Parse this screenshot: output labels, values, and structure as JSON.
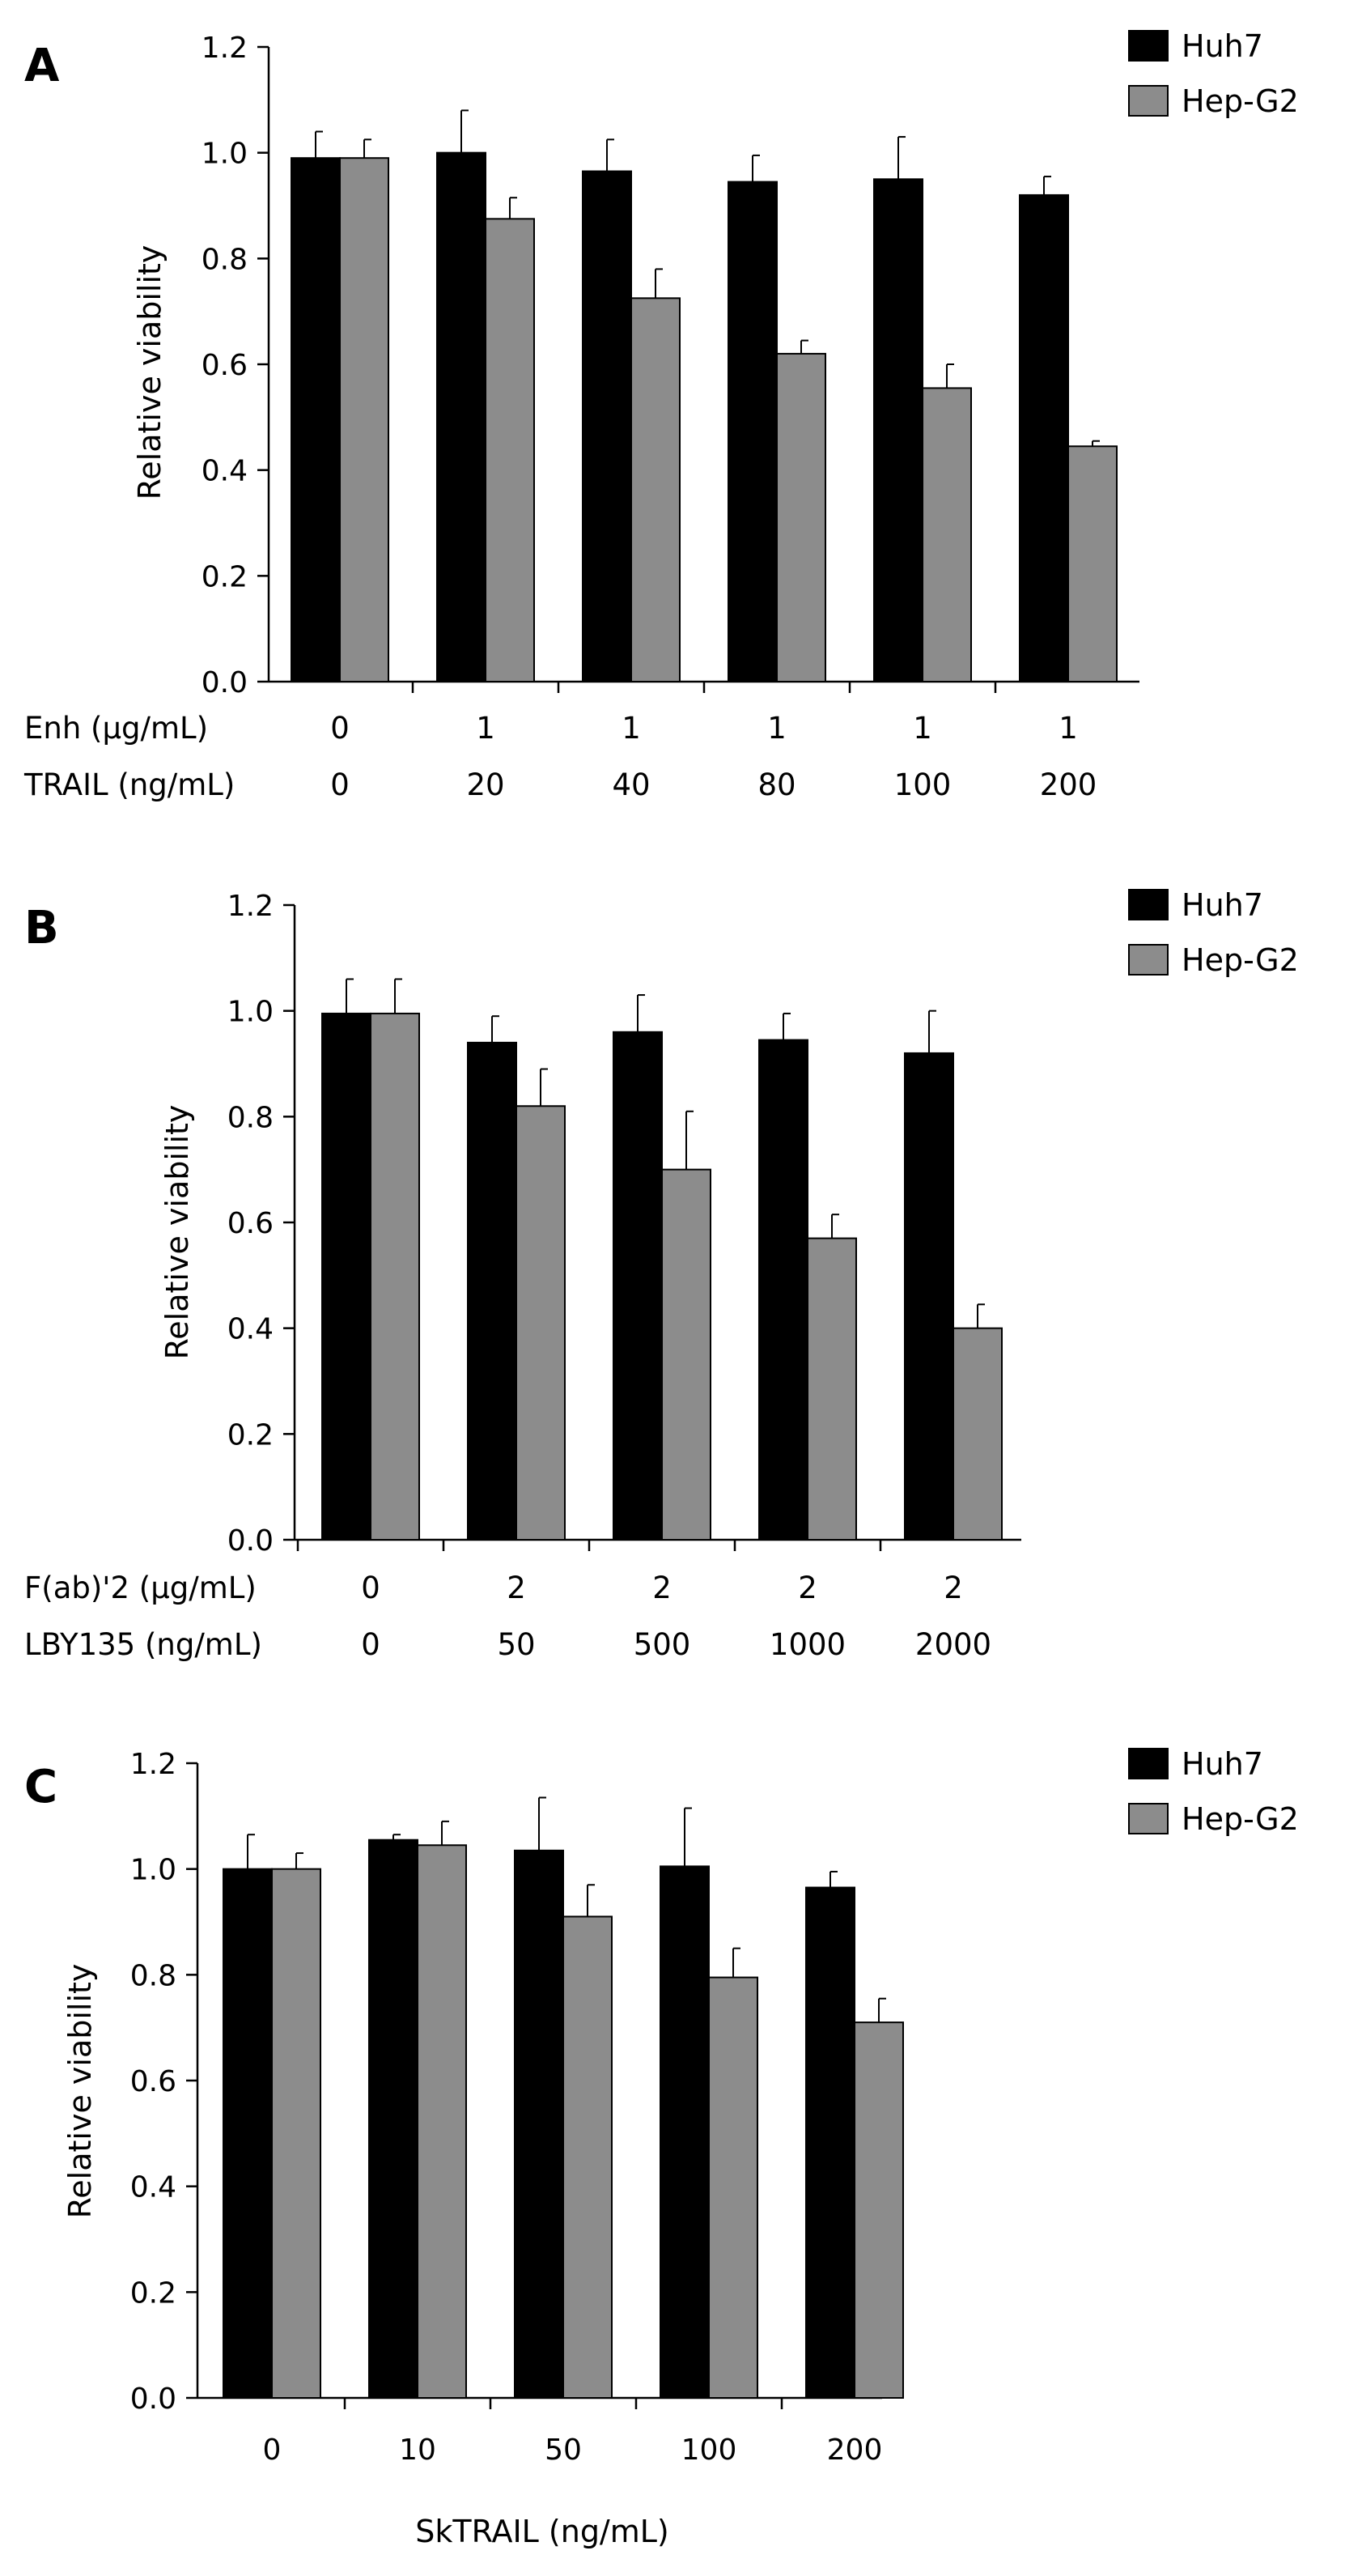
{
  "colors": {
    "huh7": "#000000",
    "hepg2": "#8c8c8c"
  },
  "chart_data": [
    {
      "panel_label": "A",
      "type": "bar",
      "ylabel": "Relative viability",
      "ylim": [
        0,
        1.2
      ],
      "yticks": [
        "0.0",
        "0.2",
        "0.4",
        "0.6",
        "0.8",
        "1.0",
        "1.2"
      ],
      "legend": {
        "placement": "top-right",
        "entries": [
          "Huh7",
          "Hep-G2"
        ]
      },
      "condition_rows": [
        {
          "label": "Enh (μg/mL)",
          "values": [
            "0",
            "1",
            "1",
            "1",
            "1",
            "1"
          ]
        },
        {
          "label": "TRAIL (ng/mL)",
          "values": [
            "0",
            "20",
            "40",
            "80",
            "100",
            "200"
          ]
        }
      ],
      "series": [
        {
          "name": "Huh7",
          "values": [
            0.99,
            1.0,
            0.965,
            0.945,
            0.95,
            0.92
          ],
          "errors": [
            0.05,
            0.08,
            0.06,
            0.05,
            0.08,
            0.035
          ]
        },
        {
          "name": "Hep-G2",
          "values": [
            0.99,
            0.875,
            0.725,
            0.62,
            0.555,
            0.445
          ],
          "errors": [
            0.035,
            0.04,
            0.055,
            0.025,
            0.045,
            0.01
          ]
        }
      ]
    },
    {
      "panel_label": "B",
      "type": "bar",
      "ylabel": "Relative viability",
      "ylim": [
        0,
        1.2
      ],
      "yticks": [
        "0.0",
        "0.2",
        "0.4",
        "0.6",
        "0.8",
        "1.0",
        "1.2"
      ],
      "legend": {
        "placement": "top-right",
        "entries": [
          "Huh7",
          "Hep-G2"
        ]
      },
      "condition_rows": [
        {
          "label": "F(ab)'2 (μg/mL)",
          "values": [
            "0",
            "2",
            "2",
            "2",
            "2"
          ]
        },
        {
          "label": "LBY135 (ng/mL)",
          "values": [
            "0",
            "50",
            "500",
            "1000",
            "2000"
          ]
        }
      ],
      "series": [
        {
          "name": "Huh7",
          "values": [
            0.995,
            0.94,
            0.96,
            0.945,
            0.92
          ],
          "errors": [
            0.065,
            0.05,
            0.07,
            0.05,
            0.08
          ]
        },
        {
          "name": "Hep-G2",
          "values": [
            0.995,
            0.82,
            0.7,
            0.57,
            0.4
          ],
          "errors": [
            0.065,
            0.07,
            0.11,
            0.045,
            0.045
          ]
        }
      ]
    },
    {
      "panel_label": "C",
      "type": "bar",
      "ylabel": "Relative viability",
      "xlabel": "SkTRAIL (ng/mL)",
      "ylim": [
        0,
        1.2
      ],
      "yticks": [
        "0.0",
        "0.2",
        "0.4",
        "0.6",
        "0.8",
        "1.0",
        "1.2"
      ],
      "legend": {
        "placement": "top-right",
        "entries": [
          "Huh7",
          "Hep-G2"
        ]
      },
      "categories": [
        "0",
        "10",
        "50",
        "100",
        "200"
      ],
      "series": [
        {
          "name": "Huh7",
          "values": [
            1.0,
            1.055,
            1.035,
            1.005,
            0.965
          ],
          "errors": [
            0.065,
            0.01,
            0.1,
            0.11,
            0.03
          ]
        },
        {
          "name": "Hep-G2",
          "values": [
            1.0,
            1.045,
            0.91,
            0.795,
            0.71
          ],
          "errors": [
            0.03,
            0.045,
            0.06,
            0.055,
            0.045
          ]
        }
      ]
    }
  ]
}
